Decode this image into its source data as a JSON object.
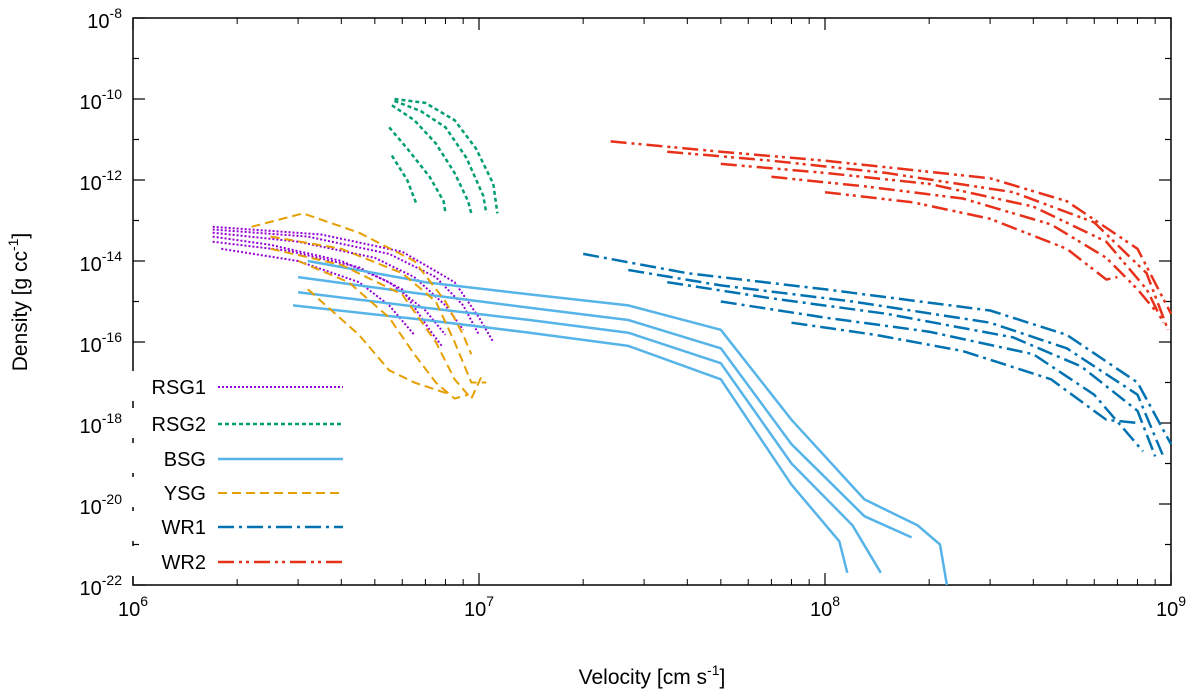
{
  "chart_data": {
    "type": "line",
    "xlabel": "Velocity [cm s",
    "xlabel_sup": "-1",
    "xlabel_end": "]",
    "ylabel": "Density [g cc",
    "ylabel_sup": "-1",
    "ylabel_end": "]",
    "x_scale": "log",
    "y_scale": "log",
    "xlim": [
      1000000,
      1000000000
    ],
    "ylim": [
      1e-22,
      1e-08
    ],
    "x_ticks": [
      {
        "base": "10",
        "exp": "6",
        "value": 1000000
      },
      {
        "base": "10",
        "exp": "7",
        "value": 10000000
      },
      {
        "base": "10",
        "exp": "8",
        "value": 100000000
      },
      {
        "base": "10",
        "exp": "9",
        "value": 1000000000
      }
    ],
    "y_ticks": [
      {
        "base": "10",
        "exp": "-8",
        "value": 1e-08
      },
      {
        "base": "10",
        "exp": "-10",
        "value": 1e-10
      },
      {
        "base": "10",
        "exp": "-12",
        "value": 1e-12
      },
      {
        "base": "10",
        "exp": "-14",
        "value": 1e-14
      },
      {
        "base": "10",
        "exp": "-16",
        "value": 1e-16
      },
      {
        "base": "10",
        "exp": "-18",
        "value": 1e-18
      },
      {
        "base": "10",
        "exp": "-20",
        "value": 1e-20
      },
      {
        "base": "10",
        "exp": "-22",
        "value": 1e-22
      }
    ],
    "legend_position": "left",
    "series": [
      {
        "name": "RSG1",
        "color": "#9400D3",
        "dash": "2,2",
        "width": 2,
        "curves": [
          [
            [
              1700000.0,
              4e-14
            ],
            [
              2500000.0,
              2.5e-14
            ],
            [
              4000000.0,
              1e-14
            ],
            [
              5500000.0,
              3e-15
            ],
            [
              7000000.0,
              6e-16
            ],
            [
              8000000.0,
              1.5e-16
            ]
          ],
          [
            [
              1700000.0,
              5e-14
            ],
            [
              3000000.0,
              3e-14
            ],
            [
              5000000.0,
              1.2e-14
            ],
            [
              6500000.0,
              4e-15
            ],
            [
              8000000.0,
              8e-16
            ],
            [
              9000000.0,
              2e-16
            ]
          ],
          [
            [
              1700000.0,
              6e-14
            ],
            [
              3200000.0,
              4e-14
            ],
            [
              5500000.0,
              1.5e-14
            ],
            [
              7500000.0,
              4e-15
            ],
            [
              9000000.0,
              8e-16
            ],
            [
              10000000.0,
              1.5e-16
            ]
          ],
          [
            [
              1700000.0,
              7e-14
            ],
            [
              3500000.0,
              4.5e-14
            ],
            [
              6000000.0,
              1.7e-14
            ],
            [
              8500000.0,
              3e-15
            ],
            [
              10000000.0,
              4e-16
            ],
            [
              11000000.0,
              1e-16
            ]
          ],
          [
            [
              1700000.0,
              3e-14
            ],
            [
              2800000.0,
              1.8e-14
            ],
            [
              4500000.0,
              7e-15
            ],
            [
              6000000.0,
              2e-15
            ],
            [
              7200000.0,
              2e-16
            ],
            [
              7800000.0,
              8e-17
            ]
          ],
          [
            [
              1800000.0,
              2e-14
            ],
            [
              3000000.0,
              1e-14
            ],
            [
              4500000.0,
              3e-15
            ],
            [
              5500000.0,
              8e-16
            ],
            [
              6500000.0,
              1.5e-16
            ]
          ]
        ]
      },
      {
        "name": "RSG2",
        "color": "#009E73",
        "dash": "4,3",
        "width": 2.5,
        "curves": [
          [
            [
              5700000.0,
              1e-10
            ],
            [
              7000000.0,
              8e-11
            ],
            [
              8500000.0,
              3e-11
            ],
            [
              9800000.0,
              6e-12
            ],
            [
              11000000.0,
              8e-13
            ],
            [
              11300000.0,
              1.5e-13
            ]
          ],
          [
            [
              5700000.0,
              9e-11
            ],
            [
              6800000.0,
              5e-11
            ],
            [
              8000000.0,
              2e-11
            ],
            [
              9200000.0,
              3.5e-12
            ],
            [
              10300000.0,
              4e-13
            ],
            [
              10500000.0,
              1.5e-13
            ]
          ],
          [
            [
              5600000.0,
              7e-11
            ],
            [
              6500000.0,
              3e-11
            ],
            [
              7500000.0,
              8e-12
            ],
            [
              8500000.0,
              1.5e-12
            ],
            [
              9300000.0,
              3e-13
            ],
            [
              9500000.0,
              1.5e-13
            ]
          ],
          [
            [
              5500000.0,
              2e-11
            ],
            [
              6200000.0,
              6e-12
            ],
            [
              7200000.0,
              1.2e-12
            ],
            [
              7900000.0,
              3e-13
            ],
            [
              8000000.0,
              1.5e-13
            ]
          ],
          [
            [
              5600000.0,
              4e-12
            ],
            [
              6200000.0,
              1e-12
            ],
            [
              6600000.0,
              2.5e-13
            ]
          ]
        ]
      },
      {
        "name": "BSG",
        "color": "#56B4E9",
        "dash": "",
        "width": 2.5,
        "curves": [
          [
            [
              3200000.0,
              1e-14
            ],
            [
              7000000.0,
              3e-15
            ],
            [
              14000000.0,
              1.5e-15
            ],
            [
              27000000.0,
              8e-16
            ],
            [
              50000000.0,
              2e-16
            ],
            [
              80000000.0,
              1.2e-18
            ],
            [
              130000000.0,
              1.3e-20
            ],
            [
              185000000.0,
              3e-21
            ],
            [
              215000000.0,
              1e-21
            ],
            [
              225000000.0,
              1e-22
            ]
          ],
          [
            [
              3000000.0,
              4e-15
            ],
            [
              7000000.0,
              1.5e-15
            ],
            [
              14000000.0,
              7e-16
            ],
            [
              27000000.0,
              3.5e-16
            ],
            [
              50000000.0,
              7e-17
            ],
            [
              80000000.0,
              3e-19
            ],
            [
              130000000.0,
              5e-21
            ],
            [
              178000000.0,
              1.5e-21
            ]
          ],
          [
            [
              3000000.0,
              1.7e-15
            ],
            [
              7000000.0,
              7e-16
            ],
            [
              14000000.0,
              3.5e-16
            ],
            [
              27000000.0,
              1.7e-16
            ],
            [
              50000000.0,
              3e-17
            ],
            [
              80000000.0,
              1e-19
            ],
            [
              120000000.0,
              3e-21
            ],
            [
              145000000.0,
              2e-22
            ]
          ],
          [
            [
              2900000.0,
              8e-16
            ],
            [
              7000000.0,
              3.5e-16
            ],
            [
              14000000.0,
              1.7e-16
            ],
            [
              27000000.0,
              8e-17
            ],
            [
              50000000.0,
              1.2e-17
            ],
            [
              80000000.0,
              3e-20
            ],
            [
              110000000.0,
              1.2e-21
            ],
            [
              116000000.0,
              2e-22
            ]
          ]
        ]
      },
      {
        "name": "YSG",
        "color": "#E69F00",
        "dash": "9,5",
        "width": 2,
        "curves": [
          [
            [
              2200000.0,
              7e-14
            ],
            [
              3100000.0,
              1.5e-13
            ],
            [
              4500000.0,
              5e-14
            ],
            [
              6500000.0,
              1e-14
            ],
            [
              8000000.0,
              1e-15
            ],
            [
              9000000.0,
              1.5e-16
            ],
            [
              9500000.0,
              5e-17
            ]
          ],
          [
            [
              2500000.0,
              4e-14
            ],
            [
              4000000.0,
              2e-14
            ],
            [
              6000000.0,
              5e-15
            ],
            [
              7500000.0,
              1e-15
            ],
            [
              8500000.0,
              1e-16
            ],
            [
              9500000.0,
              1e-17
            ],
            [
              10500000.0,
              1e-17
            ]
          ],
          [
            [
              2500000.0,
              2e-14
            ],
            [
              4000000.0,
              8e-15
            ],
            [
              6000000.0,
              1.5e-15
            ],
            [
              7500000.0,
              1e-16
            ],
            [
              8500000.0,
              1.2e-17
            ],
            [
              9500000.0,
              4e-18
            ],
            [
              10200000.0,
              1.5e-17
            ]
          ],
          [
            [
              3000000.0,
              1e-14
            ],
            [
              4200000.0,
              3e-15
            ],
            [
              5500000.0,
              4e-16
            ],
            [
              6500000.0,
              5e-17
            ],
            [
              7500000.0,
              1e-17
            ],
            [
              8500000.0,
              4e-18
            ],
            [
              9300000.0,
              5e-18
            ]
          ],
          [
            [
              3200000.0,
              2e-15
            ],
            [
              4500000.0,
              1.5e-16
            ],
            [
              5500000.0,
              2e-17
            ],
            [
              6500000.0,
              1e-17
            ],
            [
              8300000.0,
              5e-18
            ]
          ]
        ]
      },
      {
        "name": "WR1",
        "color": "#0072B2",
        "dash": "16,5,3,5",
        "width": 2.5,
        "curves": [
          [
            [
              20000000.0,
              1.5e-14
            ],
            [
              40000000.0,
              5e-15
            ],
            [
              100000000.0,
              2e-15
            ],
            [
              300000000.0,
              6e-16
            ],
            [
              500000000.0,
              1.5e-16
            ],
            [
              800000000.0,
              1e-17
            ],
            [
              1000000000.0,
              3e-19
            ]
          ],
          [
            [
              27000000.0,
              6e-15
            ],
            [
              50000000.0,
              2.5e-15
            ],
            [
              120000000.0,
              1e-15
            ],
            [
              300000000.0,
              3e-16
            ],
            [
              500000000.0,
              7e-17
            ],
            [
              800000000.0,
              5e-18
            ],
            [
              950000000.0,
              1.5e-19
            ]
          ],
          [
            [
              35000000.0,
              3e-15
            ],
            [
              70000000.0,
              1.2e-15
            ],
            [
              150000000.0,
              5e-16
            ],
            [
              350000000.0,
              1.3e-16
            ],
            [
              550000000.0,
              2.5e-17
            ],
            [
              800000000.0,
              2e-18
            ],
            [
              900000000.0,
              1.5e-19
            ]
          ],
          [
            [
              50000000.0,
              1e-15
            ],
            [
              100000000.0,
              4e-16
            ],
            [
              200000000.0,
              1.8e-16
            ],
            [
              400000000.0,
              5e-17
            ],
            [
              600000000.0,
              5e-18
            ],
            [
              830000000.0,
              2e-19
            ]
          ],
          [
            [
              80000000.0,
              3e-16
            ],
            [
              140000000.0,
              1.5e-16
            ],
            [
              250000000.0,
              6e-17
            ],
            [
              450000000.0,
              1.2e-17
            ],
            [
              650000000.0,
              1.2e-18
            ],
            [
              800000000.0,
              1e-18
            ]
          ]
        ]
      },
      {
        "name": "WR2",
        "color": "#E8311A",
        "dash": "16,5,3,4,3,5",
        "width": 2.5,
        "curves": [
          [
            [
              24000000.0,
              9e-12
            ],
            [
              50000000.0,
              5e-12
            ],
            [
              100000000.0,
              3e-12
            ],
            [
              300000000.0,
              1.1e-12
            ],
            [
              500000000.0,
              3e-13
            ],
            [
              800000000.0,
              2e-14
            ],
            [
              1000000000.0,
              5e-16
            ]
          ],
          [
            [
              35000000.0,
              5e-12
            ],
            [
              70000000.0,
              3e-12
            ],
            [
              150000000.0,
              1.5e-12
            ],
            [
              350000000.0,
              5e-13
            ],
            [
              600000000.0,
              9e-14
            ],
            [
              850000000.0,
              5e-15
            ],
            [
              980000000.0,
              2e-16
            ]
          ],
          [
            [
              50000000.0,
              2.5e-12
            ],
            [
              100000000.0,
              1.5e-12
            ],
            [
              200000000.0,
              8e-13
            ],
            [
              400000000.0,
              2.2e-13
            ],
            [
              650000000.0,
              3e-14
            ],
            [
              850000000.0,
              2e-15
            ],
            [
              950000000.0,
              3e-16
            ]
          ],
          [
            [
              70000000.0,
              1.2e-12
            ],
            [
              130000000.0,
              7e-13
            ],
            [
              250000000.0,
              3.5e-13
            ],
            [
              450000000.0,
              8e-14
            ],
            [
              650000000.0,
              1.2e-14
            ],
            [
              800000000.0,
              2e-15
            ],
            [
              900000000.0,
              6e-16
            ]
          ],
          [
            [
              100000000.0,
              5e-13
            ],
            [
              180000000.0,
              2.8e-13
            ],
            [
              300000000.0,
              1.1e-13
            ],
            [
              500000000.0,
              2e-14
            ],
            [
              650000000.0,
              3.5e-15
            ],
            [
              700000000.0,
              4e-15
            ]
          ]
        ]
      }
    ]
  }
}
